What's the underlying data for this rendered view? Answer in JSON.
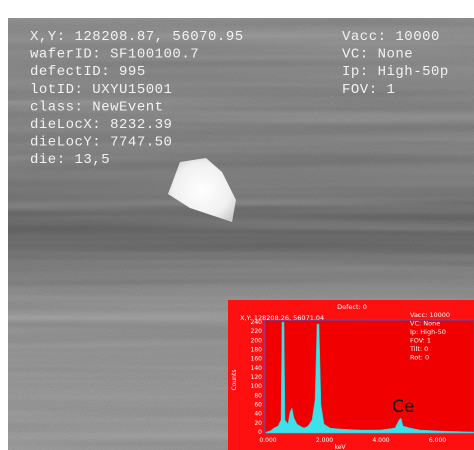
{
  "overlay": {
    "left": [
      "X,Y: 128208.87, 56070.95",
      "waferID: SF100100.7",
      "defectID: 995",
      "lotID: UXYU15001",
      "class: NewEvent",
      "dieLocX: 8232.39",
      "dieLocY: 7747.50",
      "die: 13,5"
    ],
    "right": [
      "Vacc: 10000",
      "VC: None",
      "Ip: High-50p",
      "FOV: 1"
    ]
  },
  "inset": {
    "header": "Defect: 0",
    "position": "X,Y: 128208.26, 56071.04",
    "right": [
      "Vacc: 10000",
      "VC: None",
      "Ip: High-50",
      "FOV: 1",
      "Tilt: 0",
      "Rot: 0"
    ],
    "y_label": "Counts",
    "yticks": [
      "0",
      "20",
      "40",
      "60",
      "80",
      "100",
      "120",
      "140",
      "160",
      "180",
      "200",
      "220",
      "240"
    ],
    "xticks": [
      "0.000",
      "2.000",
      "4.000",
      "6.000"
    ],
    "x_label": "keV",
    "element": "Ce"
  }
}
